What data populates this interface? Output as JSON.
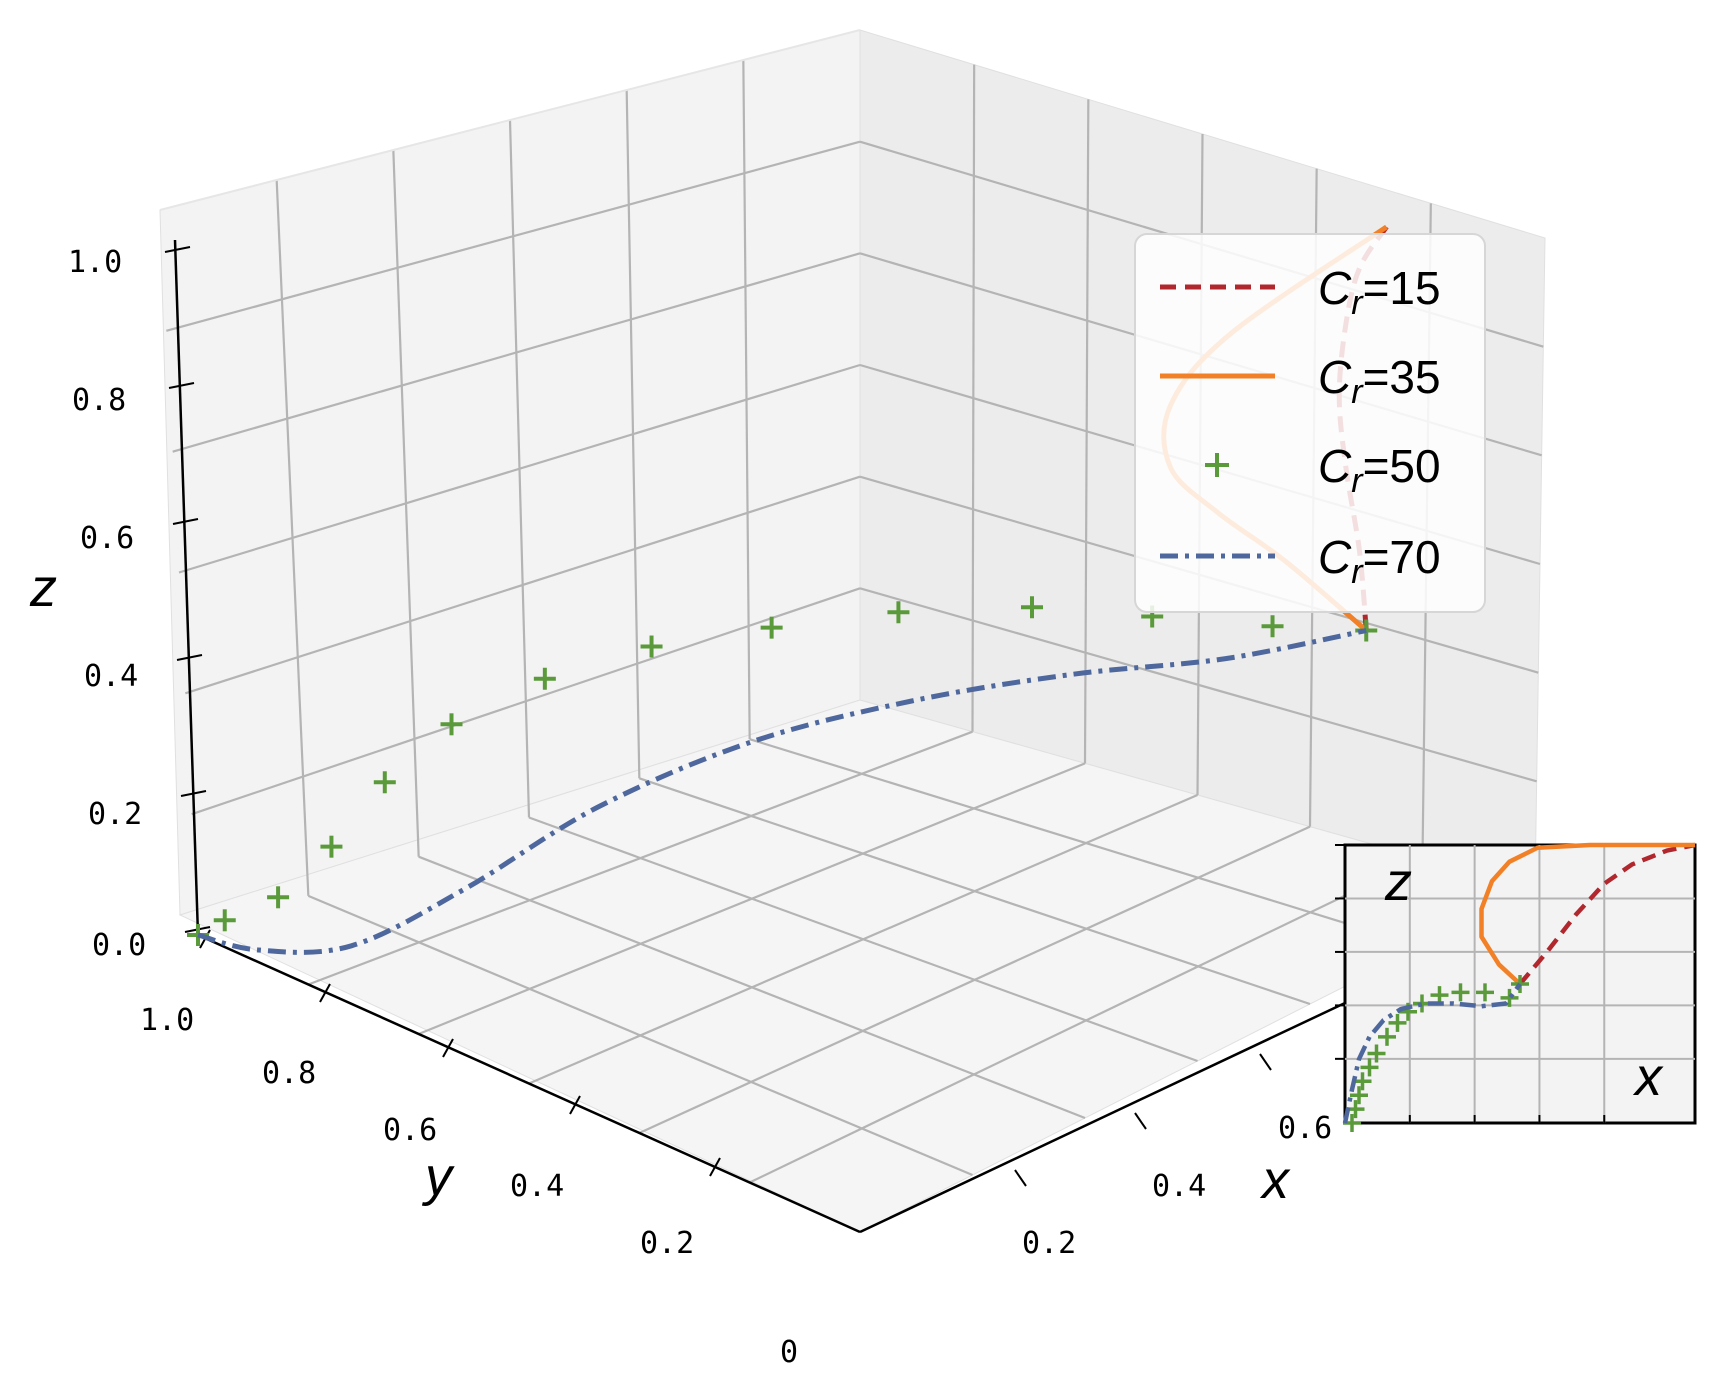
{
  "chart_data": {
    "type": "line3d",
    "title": "",
    "xlabel": "x",
    "ylabel": "y",
    "zlabel": "z",
    "x_ticks": [
      "0.2",
      "0.4",
      "0.6"
    ],
    "y_ticks": [
      "0.2",
      "0.4",
      "0.6",
      "0.8",
      "1.0"
    ],
    "z_ticks": [
      "0.0",
      "0.2",
      "0.4",
      "0.6",
      "0.8",
      "1.0"
    ],
    "origin_tick": "0",
    "series": [
      {
        "name": "C_r=15",
        "label_base": "C",
        "label_sub": "r",
        "label_value": "=15",
        "style": "dashed",
        "color": "#b0282e",
        "points": [
          [
            0.75,
            0.0,
            0.5
          ],
          [
            0.74,
            0.0,
            0.62
          ],
          [
            0.72,
            0.0,
            0.75
          ],
          [
            0.71,
            0.0,
            0.86
          ],
          [
            0.72,
            0.0,
            0.96
          ],
          [
            0.74,
            0.0,
            1.03
          ],
          [
            0.78,
            0.0,
            1.07
          ]
        ]
      },
      {
        "name": "C_r=35",
        "label_base": "C",
        "label_sub": "r",
        "label_value": "=35",
        "style": "solid",
        "color": "#f28026",
        "points": [
          [
            0.75,
            0.0,
            0.5
          ],
          [
            0.63,
            0.0,
            0.66
          ],
          [
            0.53,
            0.0,
            0.78
          ],
          [
            0.46,
            0.0,
            0.88
          ],
          [
            0.46,
            0.0,
            0.97
          ],
          [
            0.55,
            0.0,
            1.03
          ],
          [
            0.78,
            0.0,
            1.07
          ]
        ]
      },
      {
        "name": "C_r=50",
        "label_base": "C",
        "label_sub": "r",
        "label_value": "=50",
        "style": "markers",
        "color": "#5b9a3a",
        "points": [
          [
            0.0,
            1.0,
            0.0
          ],
          [
            0.02,
            0.98,
            0.02
          ],
          [
            0.05,
            0.93,
            0.06
          ],
          [
            0.08,
            0.88,
            0.14
          ],
          [
            0.11,
            0.83,
            0.24
          ],
          [
            0.15,
            0.77,
            0.33
          ],
          [
            0.2,
            0.68,
            0.41
          ],
          [
            0.26,
            0.58,
            0.47
          ],
          [
            0.33,
            0.47,
            0.51
          ],
          [
            0.41,
            0.36,
            0.54
          ],
          [
            0.5,
            0.25,
            0.55
          ],
          [
            0.58,
            0.15,
            0.54
          ],
          [
            0.67,
            0.06,
            0.52
          ],
          [
            0.75,
            0.0,
            0.5
          ]
        ]
      },
      {
        "name": "C_r=70",
        "label_base": "C",
        "label_sub": "r",
        "label_value": "=70",
        "style": "dashdot",
        "color": "#4e689e",
        "points": [
          [
            0.0,
            1.0,
            0.0
          ],
          [
            0.04,
            0.95,
            -0.02
          ],
          [
            0.09,
            0.86,
            0.0
          ],
          [
            0.15,
            0.75,
            0.1
          ],
          [
            0.22,
            0.62,
            0.24
          ],
          [
            0.31,
            0.48,
            0.35
          ],
          [
            0.41,
            0.34,
            0.42
          ],
          [
            0.52,
            0.21,
            0.46
          ],
          [
            0.63,
            0.09,
            0.48
          ],
          [
            0.75,
            0.0,
            0.5
          ]
        ]
      }
    ],
    "legend_position": "upper-right",
    "grid": true,
    "inset": {
      "title": "",
      "xlabel": "x",
      "zlabel": "z",
      "xlim": [
        0,
        1
      ],
      "zlim": [
        0,
        1
      ],
      "series": [
        {
          "name": "C_r=15",
          "x": [
            0.5,
            0.58,
            0.66,
            0.74,
            0.82,
            0.92,
            1.0
          ],
          "z": [
            0.5,
            0.62,
            0.75,
            0.86,
            0.93,
            0.98,
            1.0
          ]
        },
        {
          "name": "C_r=35",
          "x": [
            0.5,
            0.44,
            0.39,
            0.39,
            0.42,
            0.47,
            0.55,
            0.7,
            0.85,
            1.0
          ],
          "z": [
            0.5,
            0.57,
            0.67,
            0.77,
            0.87,
            0.94,
            0.99,
            1.0,
            1.0,
            1.0
          ]
        },
        {
          "name": "C_r=50",
          "x": [
            0.02,
            0.03,
            0.04,
            0.05,
            0.07,
            0.09,
            0.12,
            0.15,
            0.18,
            0.22,
            0.27,
            0.33,
            0.4,
            0.47,
            0.5
          ],
          "z": [
            0.0,
            0.05,
            0.1,
            0.15,
            0.2,
            0.25,
            0.31,
            0.36,
            0.4,
            0.43,
            0.46,
            0.47,
            0.47,
            0.45,
            0.5
          ]
        },
        {
          "name": "C_r=70",
          "x": [
            0.0,
            0.02,
            0.04,
            0.07,
            0.11,
            0.16,
            0.23,
            0.31,
            0.39,
            0.46,
            0.5
          ],
          "z": [
            0.0,
            0.12,
            0.23,
            0.31,
            0.37,
            0.41,
            0.43,
            0.43,
            0.42,
            0.43,
            0.5
          ]
        }
      ]
    }
  },
  "colors": {
    "pane": "#f2f2f2",
    "pane_dark": "#e9e9e9",
    "grid": "#b4b4b4",
    "axis": "#000000"
  }
}
